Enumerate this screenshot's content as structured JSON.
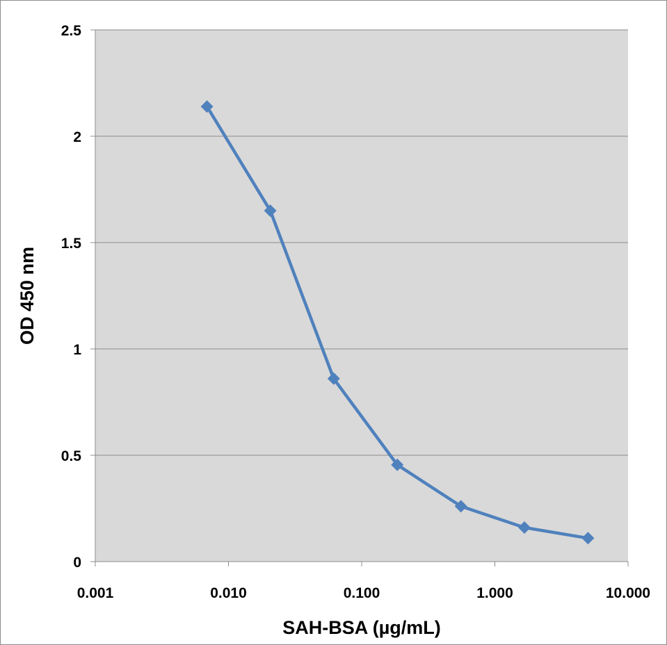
{
  "chart_data": {
    "type": "line",
    "title": "",
    "xlabel": "SAH-BSA (µg/mL)",
    "ylabel": "OD 450 nm",
    "x_scale": "log",
    "xlim": [
      0.001,
      10
    ],
    "ylim": [
      0,
      2.5
    ],
    "x_tick_labels": [
      "0.001",
      "0.010",
      "0.100",
      "1.000",
      "10.000"
    ],
    "y_tick_labels": [
      "0",
      "0.5",
      "1",
      "1.5",
      "2",
      "2.5"
    ],
    "grid": "horizontal",
    "legend": "none",
    "series": [
      {
        "marker": "diamond",
        "color": "#4f81bd",
        "x": [
          0.0069,
          0.0206,
          0.0617,
          0.185,
          0.556,
          1.667,
          5.0
        ],
        "y": [
          2.14,
          1.65,
          0.86,
          0.455,
          0.26,
          0.16,
          0.11
        ]
      }
    ],
    "plot_background": "#d9d9d9",
    "gridline_color": "#8c8c8c"
  }
}
